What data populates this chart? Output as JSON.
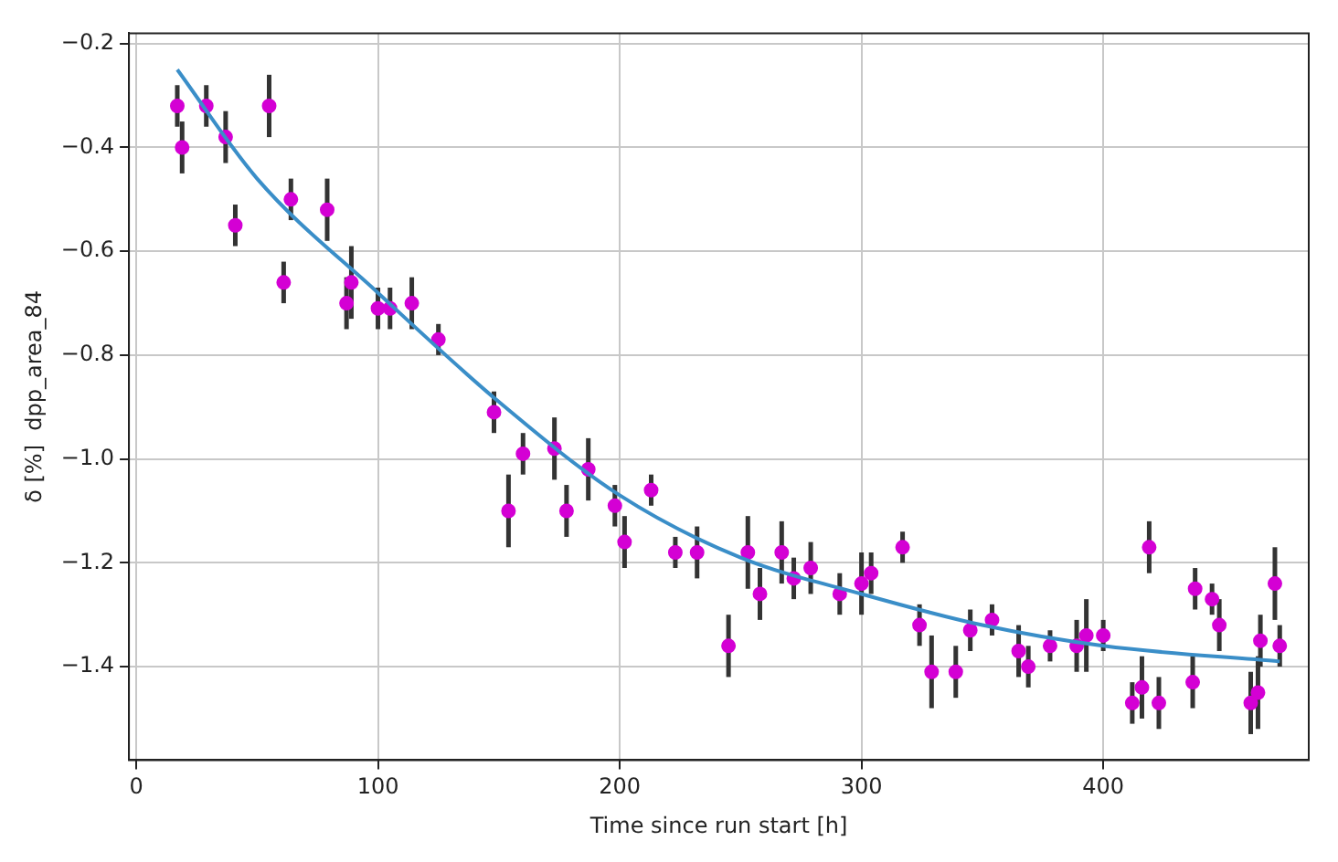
{
  "chart_data": {
    "type": "scatter",
    "xlabel": "Time since run start [h]",
    "ylabel": "δ [%]  dpp_area_84",
    "xlim": [
      -3,
      485
    ],
    "xticks": [
      0,
      100,
      200,
      300,
      400
    ],
    "ylim": [
      -1.58,
      -0.18
    ],
    "yticks": [
      {
        "value": -1.4,
        "label": "−1.4"
      },
      {
        "value": -1.2,
        "label": "−1.2"
      },
      {
        "value": -1.0,
        "label": "−1.0"
      },
      {
        "value": -0.8,
        "label": "−0.8"
      },
      {
        "value": -0.6,
        "label": "−0.6"
      },
      {
        "value": -0.4,
        "label": "−0.4"
      },
      {
        "value": -0.2,
        "label": "−0.2"
      }
    ],
    "grid": true,
    "legend": false,
    "series": [
      {
        "type": "scatter",
        "marker": "circle",
        "color": "#d400d4",
        "x": [
          17,
          19,
          29,
          37,
          41,
          55,
          61,
          64,
          79,
          87,
          89,
          100,
          105,
          114,
          125,
          148,
          154,
          160,
          173,
          178,
          187,
          198,
          202,
          213,
          223,
          232,
          245,
          253,
          258,
          267,
          272,
          279,
          291,
          300,
          304,
          317,
          324,
          329,
          339,
          345,
          354,
          365,
          369,
          378,
          389,
          393,
          400,
          412,
          416,
          419,
          423,
          437,
          438,
          445,
          448,
          461,
          464,
          465,
          471,
          473
        ],
        "values": [
          -0.32,
          -0.4,
          -0.32,
          -0.38,
          -0.55,
          -0.32,
          -0.66,
          -0.5,
          -0.52,
          -0.7,
          -0.66,
          -0.71,
          -0.71,
          -0.7,
          -0.77,
          -0.91,
          -1.1,
          -0.99,
          -0.98,
          -1.1,
          -1.02,
          -1.09,
          -1.16,
          -1.06,
          -1.18,
          -1.18,
          -1.36,
          -1.18,
          -1.26,
          -1.18,
          -1.23,
          -1.21,
          -1.26,
          -1.24,
          -1.22,
          -1.17,
          -1.32,
          -1.41,
          -1.41,
          -1.33,
          -1.31,
          -1.37,
          -1.4,
          -1.36,
          -1.36,
          -1.34,
          -1.34,
          -1.47,
          -1.44,
          -1.17,
          -1.47,
          -1.43,
          -1.25,
          -1.27,
          -1.32,
          -1.47,
          -1.45,
          -1.35,
          -1.24,
          -1.36
        ],
        "errors": [
          0.04,
          0.05,
          0.04,
          0.05,
          0.04,
          0.06,
          0.04,
          0.04,
          0.06,
          0.05,
          0.07,
          0.04,
          0.04,
          0.05,
          0.03,
          0.04,
          0.07,
          0.04,
          0.06,
          0.05,
          0.06,
          0.04,
          0.05,
          0.03,
          0.03,
          0.05,
          0.06,
          0.07,
          0.05,
          0.06,
          0.04,
          0.05,
          0.04,
          0.06,
          0.04,
          0.03,
          0.04,
          0.07,
          0.05,
          0.04,
          0.03,
          0.05,
          0.04,
          0.03,
          0.05,
          0.07,
          0.03,
          0.04,
          0.06,
          0.05,
          0.05,
          0.05,
          0.04,
          0.03,
          0.05,
          0.06,
          0.07,
          0.05,
          0.07,
          0.04
        ]
      },
      {
        "type": "line",
        "marker": "none",
        "color": "#3a8ec8",
        "x": [
          17,
          50,
          100,
          150,
          200,
          250,
          300,
          350,
          400,
          473
        ],
        "values": [
          -0.25,
          -0.46,
          -0.68,
          -0.89,
          -1.07,
          -1.19,
          -1.26,
          -1.32,
          -1.36,
          -1.39
        ]
      }
    ]
  }
}
